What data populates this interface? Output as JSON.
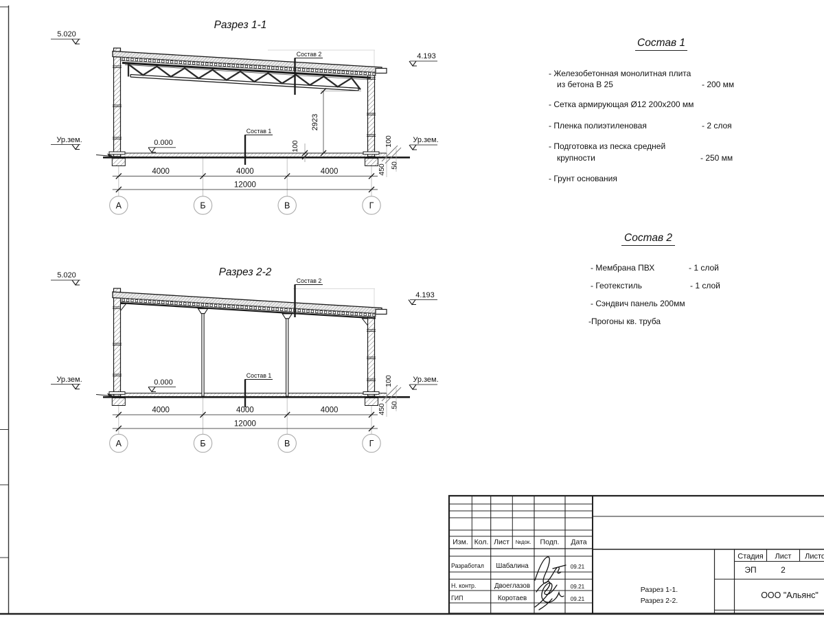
{
  "sheet": {
    "bg": "#ffffff",
    "line_color": "#1b1b1b"
  },
  "sections": [
    {
      "title": "Разрез 1-1",
      "elev_top": "5.020",
      "elev_right": "4.193",
      "ground_left": "Ур.зем.",
      "ground_right": "Ур.зем.",
      "zero": "0.000",
      "callout_top": "Состав 2",
      "callout_bottom": "Состав 1",
      "spans": [
        "4000",
        "4000",
        "4000"
      ],
      "total": "12000",
      "axes": [
        "А",
        "Б",
        "В",
        "Г"
      ],
      "truss_height": "2923",
      "slab_dim": "100",
      "dim_100": "100",
      "dim_450": "450",
      "dim_50": "50"
    },
    {
      "title": "Разрез 2-2",
      "elev_top": "5.020",
      "elev_right": "4.193",
      "ground_left": "Ур.зем.",
      "ground_right": "Ур.зем.",
      "zero": "0.000",
      "callout_top": "Состав 2",
      "callout_bottom": "Состав 1",
      "spans": [
        "4000",
        "4000",
        "4000"
      ],
      "total": "12000",
      "axes": [
        "А",
        "Б",
        "В",
        "Г"
      ],
      "dim_100": "100",
      "dim_450": "450",
      "dim_50": "50"
    }
  ],
  "spec1": {
    "title": "Состав 1",
    "items": [
      {
        "line1": "- Железобетонная  монолитная плита",
        "line2": "из бетона В 25",
        "value": "- 200 мм"
      },
      {
        "line1": "- Сетка армирующая Ø12 200х200 мм"
      },
      {
        "line1": "- Пленка полиэтиленовая",
        "value": "-  2 слоя"
      },
      {
        "line1": "- Подготовка из песка средней",
        "line2": "крупности",
        "value": "- 250 мм"
      },
      {
        "line1": "- Грунт основания"
      }
    ]
  },
  "spec2": {
    "title": "Состав 2",
    "items": [
      {
        "line1": "- Мембрана ПВХ",
        "value": "- 1 слой"
      },
      {
        "line1": "- Геотекстиль",
        "value": "- 1 слой"
      },
      {
        "line1": "- Сэндвич панель 200мм"
      },
      {
        "line1": "-Прогоны кв. труба"
      }
    ]
  },
  "titleblock": {
    "cols": {
      "izm": "Изм.",
      "kol": "Кол.",
      "list": "Лист",
      "ndok": "№док.",
      "podp": "Подп.",
      "data": "Дата"
    },
    "rows": [
      {
        "role": "Разработал",
        "name": "Шабалина",
        "date": "09.21"
      },
      {
        "role": "Н. контр.",
        "name": "Двоеглазов",
        "date": "09.21"
      },
      {
        "role": "ГИП",
        "name": "Коротаев",
        "date": "09.21"
      }
    ],
    "sheet_name_1": "Разрез 1-1.",
    "sheet_name_2": "Разрез 2-2.",
    "stage_label": "Стадия",
    "list_label": "Лист",
    "listov_label": "Листов",
    "stage": "ЭП",
    "list_no": "2",
    "org": "ООО \"Альянс\""
  }
}
